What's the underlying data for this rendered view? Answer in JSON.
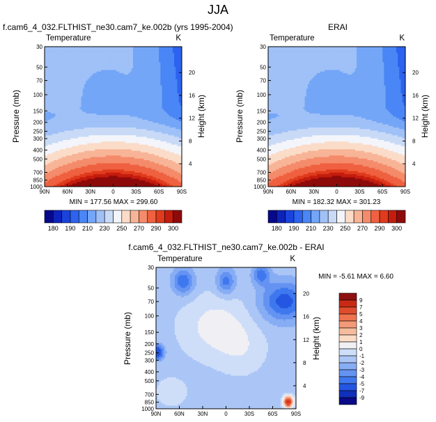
{
  "figure_title": "JJA",
  "colors": {
    "abs_scale": [
      "#08088c",
      "#0d23b9",
      "#1a43dc",
      "#2c63ef",
      "#4a86f5",
      "#74a6f7",
      "#9fc1f7",
      "#c9daf7",
      "#f3f5fb",
      "#fbdcc8",
      "#f8b497",
      "#f48b6a",
      "#ef6140",
      "#e03b1d",
      "#c41d0e",
      "#8e0b0b"
    ],
    "diff_scale": [
      "#0a0a88",
      "#1030bb",
      "#2456e2",
      "#3f78ee",
      "#6493f2",
      "#87adf4",
      "#abc6f6",
      "#cfdef8",
      "#f0f0f4",
      "#fadcc6",
      "#f6bc9e",
      "#f29a78",
      "#ee7450",
      "#e04d2e",
      "#c82b15",
      "#8e1010"
    ]
  },
  "chart_data": [
    {
      "type": "heatmap",
      "title": "f.cam6_4_032.FLTHIST_ne30.cam7_ke.002b (yrs 1995-2004)",
      "variable_label": "Temperature",
      "units": "K",
      "ylabel": "Pressure (mb)",
      "ylabel_right": "Height (km)",
      "x_ticks": [
        "90N",
        "60N",
        "30N",
        "0",
        "30S",
        "60S",
        "90S"
      ],
      "y_ticks": [
        "30",
        "50",
        "70",
        "100",
        "150",
        "200",
        "250",
        "300",
        "400",
        "500",
        "700",
        "850",
        "1000"
      ],
      "height_ticks": [
        "20",
        "16",
        "12",
        "8",
        "4"
      ],
      "ylim": [
        1000,
        30
      ],
      "stats_text": "MIN = 177.56   MAX = 299.60",
      "min": 177.56,
      "max": 299.6,
      "colorbar_labels": [
        "180",
        "190",
        "210",
        "230",
        "250",
        "270",
        "290",
        "300"
      ]
    },
    {
      "type": "heatmap",
      "title": "ERAI",
      "variable_label": "Temperature",
      "units": "K",
      "ylabel": "Pressure (mb)",
      "ylabel_right": "Height (km)",
      "x_ticks": [
        "90N",
        "60N",
        "30N",
        "0",
        "30S",
        "60S",
        "90S"
      ],
      "y_ticks": [
        "30",
        "50",
        "70",
        "100",
        "150",
        "200",
        "250",
        "300",
        "400",
        "500",
        "700",
        "850",
        "1000"
      ],
      "height_ticks": [
        "20",
        "16",
        "12",
        "8",
        "4"
      ],
      "ylim": [
        1000,
        30
      ],
      "stats_text": "MIN = 182.32   MAX = 301.23",
      "min": 182.32,
      "max": 301.23,
      "colorbar_labels": [
        "180",
        "190",
        "210",
        "230",
        "250",
        "270",
        "290",
        "300"
      ]
    },
    {
      "type": "heatmap",
      "title": "f.cam6_4_032.FLTHIST_ne30.cam7_ke.002b - ERAI",
      "variable_label": "Temperature",
      "units": "K",
      "ylabel": "Pressure (mb)",
      "ylabel_right": "Height (km)",
      "x_ticks": [
        "90N",
        "60N",
        "30N",
        "0",
        "30S",
        "60S",
        "90S"
      ],
      "y_ticks": [
        "30",
        "50",
        "70",
        "100",
        "150",
        "200",
        "250",
        "300",
        "400",
        "500",
        "700",
        "850",
        "1000"
      ],
      "height_ticks": [
        "20",
        "16",
        "12",
        "8",
        "4"
      ],
      "ylim": [
        1000,
        30
      ],
      "stats_text": "MIN =  -5.61   MAX =   6.60",
      "min": -5.61,
      "max": 6.6,
      "colorbar_labels": [
        "9",
        "7",
        "5",
        "4",
        "3",
        "2",
        "1",
        "0",
        "-1",
        "-2",
        "-3",
        "-4",
        "-5",
        "-7",
        "-9"
      ]
    }
  ]
}
